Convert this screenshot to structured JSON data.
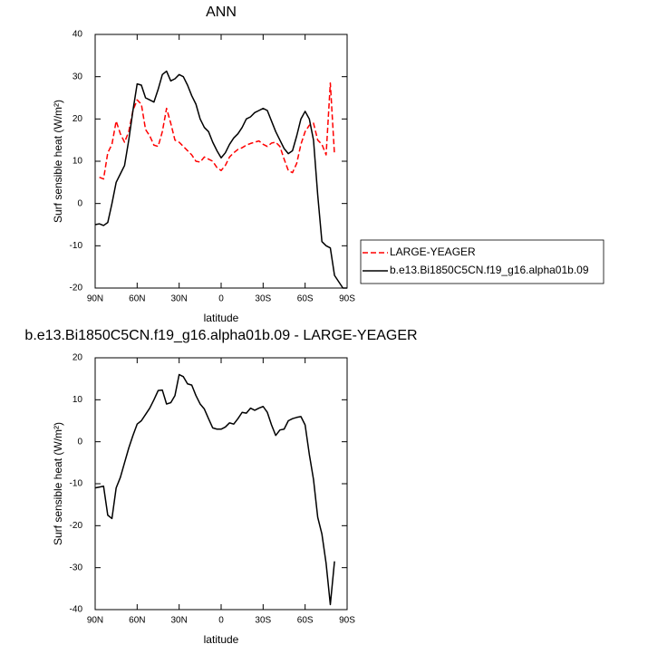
{
  "chart_data": [
    {
      "type": "line",
      "title": "ANN",
      "x_label": "latitude",
      "y_label": "Surf sensible heat (W/m²)",
      "x": [
        90,
        87,
        84,
        81,
        78,
        75,
        72,
        69,
        66,
        63,
        60,
        57,
        54,
        51,
        48,
        45,
        42,
        39,
        36,
        33,
        30,
        27,
        24,
        21,
        18,
        15,
        12,
        9,
        6,
        3,
        0,
        -3,
        -6,
        -9,
        -12,
        -15,
        -18,
        -21,
        -24,
        -27,
        -30,
        -33,
        -36,
        -39,
        -42,
        -45,
        -48,
        -51,
        -54,
        -57,
        -60,
        -63,
        -66,
        -69,
        -72,
        -75,
        -78,
        -81,
        -84,
        -87,
        -90
      ],
      "xlim": [
        90,
        -90
      ],
      "xticks": [
        {
          "value": 90,
          "label": "90N"
        },
        {
          "value": 60,
          "label": "60N"
        },
        {
          "value": 30,
          "label": "30N"
        },
        0,
        {
          "value": -30,
          "label": "30S"
        },
        {
          "value": -60,
          "label": "60S"
        },
        {
          "value": -90,
          "label": "90S"
        }
      ],
      "ylim": [
        -20,
        40
      ],
      "yticks": [
        -20,
        -10,
        0,
        10,
        20,
        30,
        40
      ],
      "legend": true,
      "series": [
        {
          "name": "LARGE-YEAGER",
          "color": "#ff0000",
          "line_style": "dashed",
          "values": [
            null,
            6.2,
            5.8,
            12,
            14,
            19.5,
            16.5,
            14.5,
            17,
            22,
            24.5,
            23.5,
            17.5,
            16,
            13.8,
            13.5,
            17,
            22.5,
            19,
            15,
            14.5,
            13.5,
            12.5,
            11.5,
            10,
            9.8,
            11,
            10.5,
            10,
            8.5,
            7.8,
            9,
            11,
            12,
            12.8,
            13.2,
            13.8,
            14.2,
            14.5,
            14.8,
            14,
            13.5,
            14.3,
            14.5,
            13.5,
            10.5,
            7.8,
            7.3,
            9.5,
            14,
            17,
            18.5,
            19,
            15,
            14,
            11.5,
            28.5,
            11.5,
            null,
            null,
            null
          ]
        },
        {
          "name": "b.e13.Bi1850C5CN.f19_g16.alpha01b.09",
          "color": "#000000",
          "line_style": "solid",
          "values": [
            -5,
            -4.8,
            -5.2,
            -4.5,
            0,
            5,
            7,
            9,
            15,
            22,
            28.3,
            28,
            25,
            24.5,
            24,
            27,
            30.5,
            31.3,
            29,
            29.5,
            30.5,
            30,
            28,
            25.5,
            23.5,
            20,
            18,
            17,
            14.5,
            12.5,
            10.8,
            12,
            14,
            15.5,
            16.5,
            18,
            20,
            20.5,
            21.5,
            22,
            22.5,
            22,
            19.5,
            17,
            15,
            13,
            11.8,
            12.5,
            16,
            20,
            21.8,
            20,
            15,
            2,
            -9,
            -10,
            -10.5,
            -17,
            -18.5,
            -20,
            -20
          ]
        }
      ]
    },
    {
      "type": "line",
      "title": "b.e13.Bi1850C5CN.f19_g16.alpha01b.09 - LARGE-YEAGER",
      "x_label": "latitude",
      "y_label": "Surf sensible heat (W/m²)",
      "x": [
        90,
        87,
        84,
        81,
        78,
        75,
        72,
        69,
        66,
        63,
        60,
        57,
        54,
        51,
        48,
        45,
        42,
        39,
        36,
        33,
        30,
        27,
        24,
        21,
        18,
        15,
        12,
        9,
        6,
        3,
        0,
        -3,
        -6,
        -9,
        -12,
        -15,
        -18,
        -21,
        -24,
        -27,
        -30,
        -33,
        -36,
        -39,
        -42,
        -45,
        -48,
        -51,
        -54,
        -57,
        -60,
        -63,
        -66,
        -69,
        -72,
        -75,
        -78,
        -81,
        -84,
        -87,
        -90
      ],
      "xlim": [
        90,
        -90
      ],
      "xticks": [
        {
          "value": 90,
          "label": "90N"
        },
        {
          "value": 60,
          "label": "60N"
        },
        {
          "value": 30,
          "label": "30N"
        },
        0,
        {
          "value": -30,
          "label": "30S"
        },
        {
          "value": -60,
          "label": "60S"
        },
        {
          "value": -90,
          "label": "90S"
        }
      ],
      "ylim": [
        -40,
        20
      ],
      "yticks": [
        -40,
        -30,
        -20,
        -10,
        0,
        10,
        20
      ],
      "legend": false,
      "series": [
        {
          "color": "#000000",
          "line_style": "solid",
          "values": [
            -11,
            -10.8,
            -10.6,
            -17.5,
            -18.3,
            -11,
            -8.5,
            -5,
            -1.5,
            1.5,
            4.2,
            5,
            6.5,
            8,
            10,
            12.2,
            12.3,
            9,
            9.3,
            11,
            16,
            15.5,
            13.8,
            13.5,
            11,
            9,
            7.8,
            5.5,
            3.3,
            3,
            3,
            3.5,
            4.5,
            4.2,
            5.5,
            7,
            6.8,
            8,
            7.5,
            8,
            8.4,
            7,
            4,
            1.5,
            2.8,
            3,
            5,
            5.5,
            5.8,
            6,
            4,
            -3,
            -9,
            -18,
            -22,
            -29,
            -38.8,
            -28.5,
            null,
            null,
            null
          ]
        }
      ]
    }
  ]
}
